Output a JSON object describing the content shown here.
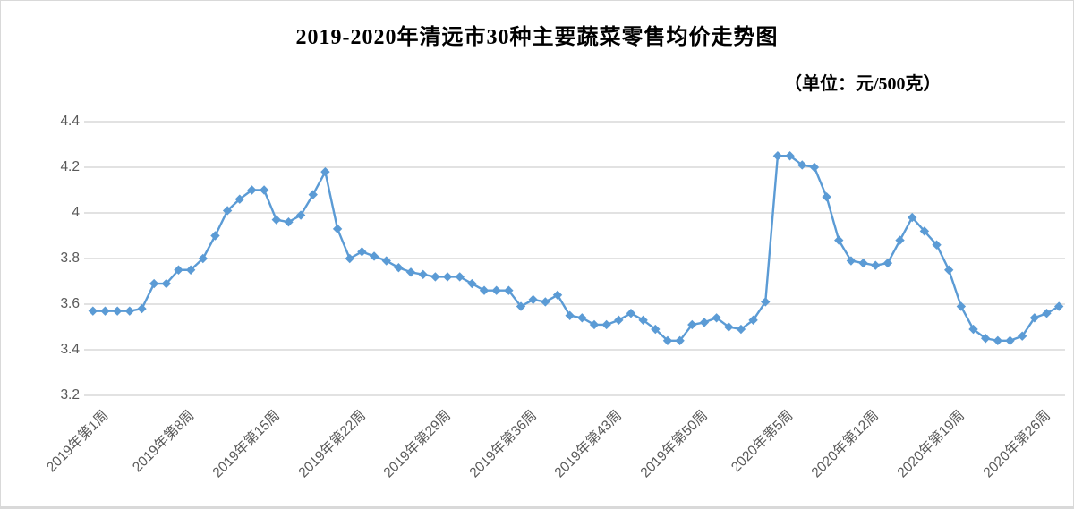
{
  "chart": {
    "title": "2019-2020年清远市30种主要蔬菜零售均价走势图",
    "unit_label": "（单位：元/500克）"
  },
  "colors": {
    "line": "#5B9BD5",
    "marker": "#5B9BD5",
    "grid": "#D9D9D9",
    "axis_text": "#595959",
    "title_text": "#000000"
  },
  "chart_data": {
    "type": "line",
    "title": "2019-2020年清远市30种主要蔬菜零售均价走势图",
    "unit": "元/500克",
    "ylim": [
      3.2,
      4.4
    ],
    "y_tick_labels": [
      "3.2",
      "3.4",
      "3.6",
      "3.8",
      "4",
      "4.2",
      "4.4"
    ],
    "grid": "horizontal",
    "legend": "none",
    "marker": "diamond",
    "x_tick_interval": 7,
    "x_tick_labels": [
      "2019年第1周",
      "2019年第8周",
      "2019年第15周",
      "2019年第22周",
      "2019年第29周",
      "2019年第36周",
      "2019年第43周",
      "2019年第50周",
      "2020年第5周",
      "2020年第12周",
      "2020年第19周",
      "2020年第26周"
    ],
    "values": [
      3.57,
      3.57,
      3.57,
      3.57,
      3.58,
      3.69,
      3.69,
      3.75,
      3.75,
      3.8,
      3.9,
      4.01,
      4.06,
      4.1,
      4.1,
      3.97,
      3.96,
      3.99,
      4.08,
      4.18,
      3.93,
      3.8,
      3.83,
      3.81,
      3.79,
      3.76,
      3.74,
      3.73,
      3.72,
      3.72,
      3.72,
      3.69,
      3.66,
      3.66,
      3.66,
      3.59,
      3.62,
      3.61,
      3.64,
      3.55,
      3.54,
      3.51,
      3.51,
      3.53,
      3.56,
      3.53,
      3.49,
      3.44,
      3.44,
      3.51,
      3.52,
      3.54,
      3.5,
      3.49,
      3.53,
      3.61,
      4.25,
      4.25,
      4.21,
      4.2,
      4.07,
      3.88,
      3.79,
      3.78,
      3.77,
      3.78,
      3.88,
      3.98,
      3.92,
      3.86,
      3.75,
      3.59,
      3.49,
      3.45,
      3.44,
      3.44,
      3.46,
      3.54,
      3.56,
      3.59
    ]
  }
}
